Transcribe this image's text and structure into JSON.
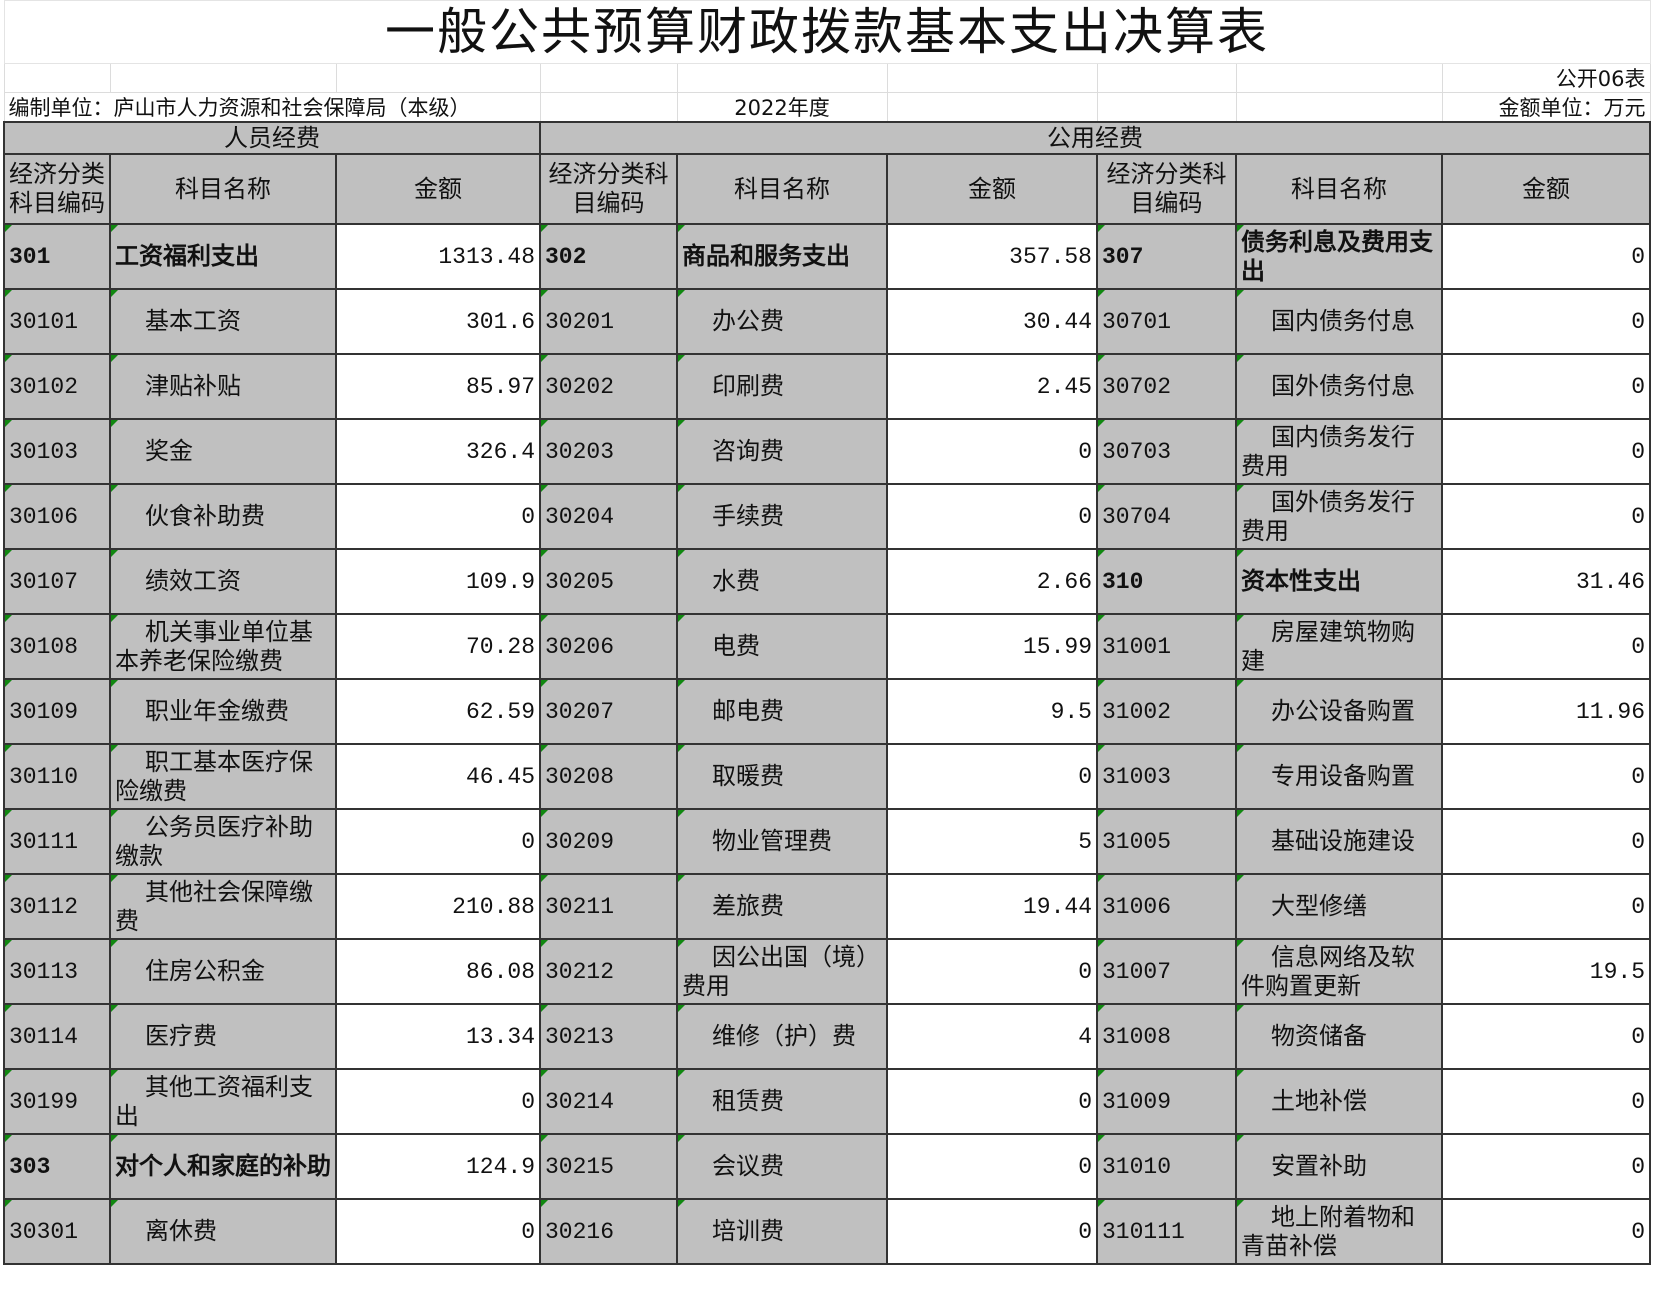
{
  "title": "一般公共预算财政拨款基本支出决算表",
  "table_no": "公开06表",
  "unit_label": "编制单位：庐山市人力资源和社会保障局（本级）",
  "year": "2022年度",
  "amount_unit": "金额单位：万元",
  "groups": {
    "personnel": "人员经费",
    "public": "公用经费"
  },
  "column_headers": [
    "经济分类科目编码",
    "科目名称",
    "金额",
    "经济分类科目编码",
    "科目名称",
    "金额",
    "经济分类科目编码",
    "科目名称",
    "金额"
  ],
  "rows": [
    {
      "left": {
        "code": "301",
        "name": "工资福利支出",
        "amount": "1313.48",
        "bold": true
      },
      "mid": {
        "code": "302",
        "name": "商品和服务支出",
        "amount": "357.58",
        "bold": true
      },
      "right": {
        "code": "307",
        "name": "债务利息及费用支出",
        "amount": "0",
        "bold": true
      }
    },
    {
      "left": {
        "code": "30101",
        "name": "基本工资",
        "amount": "301.6"
      },
      "mid": {
        "code": "30201",
        "name": "办公费",
        "amount": "30.44"
      },
      "right": {
        "code": "30701",
        "name": "国内债务付息",
        "amount": "0"
      }
    },
    {
      "left": {
        "code": "30102",
        "name": "津贴补贴",
        "amount": "85.97"
      },
      "mid": {
        "code": "30202",
        "name": "印刷费",
        "amount": "2.45"
      },
      "right": {
        "code": "30702",
        "name": "国外债务付息",
        "amount": "0"
      }
    },
    {
      "left": {
        "code": "30103",
        "name": "奖金",
        "amount": "326.4"
      },
      "mid": {
        "code": "30203",
        "name": "咨询费",
        "amount": "0"
      },
      "right": {
        "code": "30703",
        "name": "国内债务发行费用",
        "amount": "0"
      }
    },
    {
      "left": {
        "code": "30106",
        "name": "伙食补助费",
        "amount": "0"
      },
      "mid": {
        "code": "30204",
        "name": "手续费",
        "amount": "0"
      },
      "right": {
        "code": "30704",
        "name": "国外债务发行费用",
        "amount": "0"
      }
    },
    {
      "left": {
        "code": "30107",
        "name": "绩效工资",
        "amount": "109.9"
      },
      "mid": {
        "code": "30205",
        "name": "水费",
        "amount": "2.66"
      },
      "right": {
        "code": "310",
        "name": "资本性支出",
        "amount": "31.46",
        "bold": true
      }
    },
    {
      "left": {
        "code": "30108",
        "name": "机关事业单位基本养老保险缴费",
        "amount": "70.28"
      },
      "mid": {
        "code": "30206",
        "name": "电费",
        "amount": "15.99"
      },
      "right": {
        "code": "31001",
        "name": "房屋建筑物购建",
        "amount": "0"
      }
    },
    {
      "left": {
        "code": "30109",
        "name": "职业年金缴费",
        "amount": "62.59"
      },
      "mid": {
        "code": "30207",
        "name": "邮电费",
        "amount": "9.5"
      },
      "right": {
        "code": "31002",
        "name": "办公设备购置",
        "amount": "11.96"
      }
    },
    {
      "left": {
        "code": "30110",
        "name": "职工基本医疗保险缴费",
        "amount": "46.45"
      },
      "mid": {
        "code": "30208",
        "name": "取暖费",
        "amount": "0"
      },
      "right": {
        "code": "31003",
        "name": "专用设备购置",
        "amount": "0"
      }
    },
    {
      "left": {
        "code": "30111",
        "name": "公务员医疗补助缴款",
        "amount": "0"
      },
      "mid": {
        "code": "30209",
        "name": "物业管理费",
        "amount": "5"
      },
      "right": {
        "code": "31005",
        "name": "基础设施建设",
        "amount": "0"
      }
    },
    {
      "left": {
        "code": "30112",
        "name": "其他社会保障缴费",
        "amount": "210.88"
      },
      "mid": {
        "code": "30211",
        "name": "差旅费",
        "amount": "19.44"
      },
      "right": {
        "code": "31006",
        "name": "大型修缮",
        "amount": "0"
      }
    },
    {
      "left": {
        "code": "30113",
        "name": "住房公积金",
        "amount": "86.08"
      },
      "mid": {
        "code": "30212",
        "name": "因公出国（境）费用",
        "amount": "0"
      },
      "right": {
        "code": "31007",
        "name": "信息网络及软件购置更新",
        "amount": "19.5"
      }
    },
    {
      "left": {
        "code": "30114",
        "name": "医疗费",
        "amount": "13.34"
      },
      "mid": {
        "code": "30213",
        "name": "维修（护）费",
        "amount": "4"
      },
      "right": {
        "code": "31008",
        "name": "物资储备",
        "amount": "0"
      }
    },
    {
      "left": {
        "code": "30199",
        "name": "其他工资福利支出",
        "amount": "0"
      },
      "mid": {
        "code": "30214",
        "name": "租赁费",
        "amount": "0"
      },
      "right": {
        "code": "31009",
        "name": "土地补偿",
        "amount": "0"
      }
    },
    {
      "left": {
        "code": "303",
        "name": "对个人和家庭的补助",
        "amount": "124.9",
        "bold": true
      },
      "mid": {
        "code": "30215",
        "name": "会议费",
        "amount": "0"
      },
      "right": {
        "code": "31010",
        "name": "安置补助",
        "amount": "0"
      }
    },
    {
      "left": {
        "code": "30301",
        "name": "离休费",
        "amount": "0"
      },
      "mid": {
        "code": "30216",
        "name": "培训费",
        "amount": "0"
      },
      "right": {
        "code": "310111",
        "name": "地上附着物和青苗补偿",
        "amount": "0"
      }
    }
  ]
}
